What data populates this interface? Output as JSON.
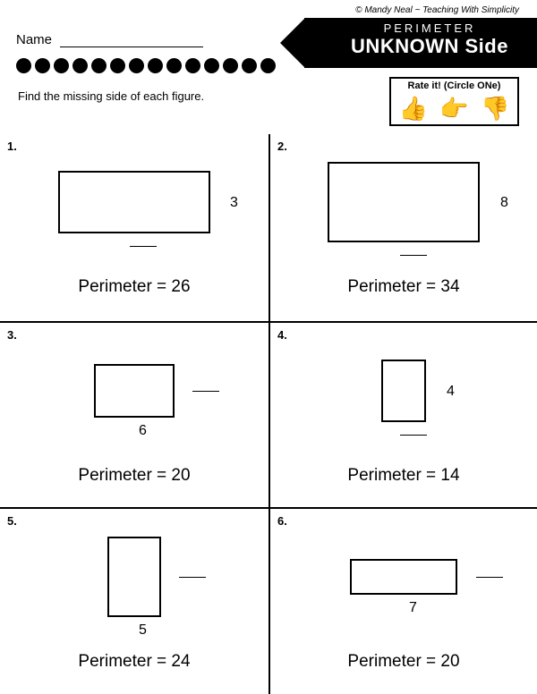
{
  "copyright": "© Mandy Neal ~ Teaching With Simplicity",
  "name_label": "Name",
  "header": {
    "line1": "PERIMETER",
    "line2": "UNKNOWN Side"
  },
  "instruction": "Find the missing side of each figure.",
  "rate_box": {
    "title": "Rate it! (Circle ONe)",
    "icons": [
      "👍",
      "👉",
      "👎"
    ]
  },
  "problems": [
    {
      "num": "1.",
      "rect_w": 170,
      "rect_h": 70,
      "known_side": "3",
      "known_pos": "right",
      "blank_pos": "bottom",
      "perimeter": "Perimeter = 26"
    },
    {
      "num": "2.",
      "rect_w": 170,
      "rect_h": 90,
      "known_side": "8",
      "known_pos": "right",
      "blank_pos": "bottom",
      "perimeter": "Perimeter = 34"
    },
    {
      "num": "3.",
      "rect_w": 90,
      "rect_h": 60,
      "known_side": "6",
      "known_pos": "bottom",
      "blank_pos": "right",
      "perimeter": "Perimeter = 20"
    },
    {
      "num": "4.",
      "rect_w": 50,
      "rect_h": 70,
      "known_side": "4",
      "known_pos": "right",
      "blank_pos": "bottom",
      "perimeter": "Perimeter = 14"
    },
    {
      "num": "5.",
      "rect_w": 60,
      "rect_h": 90,
      "known_side": "5",
      "known_pos": "bottom",
      "blank_pos": "right",
      "perimeter": "Perimeter = 24"
    },
    {
      "num": "6.",
      "rect_w": 120,
      "rect_h": 40,
      "known_side": "7",
      "known_pos": "bottom",
      "blank_pos": "right",
      "perimeter": "Perimeter = 20"
    }
  ]
}
